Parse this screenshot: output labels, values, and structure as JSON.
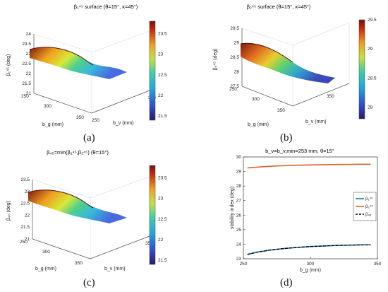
{
  "captions": [
    "(a)",
    "(b)",
    "(c)",
    "(d)"
  ],
  "chart_data": [
    {
      "type": "surface",
      "title": "β₁⁴⁵ surface (θ=15°, κ=45°)",
      "zlabel": "β₁⁴⁵ (deg)",
      "xlabel": "b_g (mm)",
      "ylabel": "b_v (mm)",
      "x_ticks": [
        "250",
        "300",
        "350"
      ],
      "y_ticks": [
        "250",
        "300",
        "350"
      ],
      "z_ticks": [
        "21",
        "21.5",
        "22",
        "22.5",
        "23",
        "23.5",
        "24"
      ],
      "zlim": [
        21,
        24
      ],
      "colorbar_ticks": [
        "21.5",
        "22",
        "22.5",
        "23",
        "23.5"
      ],
      "colorbar_range": [
        21.4,
        23.8
      ],
      "colormap": "jet"
    },
    {
      "type": "surface",
      "title": "β₂⁴⁵ surface (θ=15°, κ=45°)",
      "zlabel": "β₂⁴⁵ (deg)",
      "xlabel": "b_g (mm)",
      "ylabel": "b_v (mm)",
      "x_ticks": [
        "250",
        "300",
        "350"
      ],
      "y_ticks": [
        "250",
        "300",
        "350"
      ],
      "z_ticks": [
        "27.5",
        "28",
        "28.5",
        "29",
        "29.5"
      ],
      "zlim": [
        27.5,
        29.5
      ],
      "colorbar_ticks": [
        "28",
        "28.5",
        "29",
        "29.5"
      ],
      "colorbar_range": [
        27.8,
        29.5
      ],
      "colormap": "jet"
    },
    {
      "type": "surface",
      "title": "β₄₅=min(β₁⁴⁵,β₂⁴⁵) (θ=15°)",
      "zlabel": "β₄₅ (deg)",
      "xlabel": "b_g (mm)",
      "ylabel": "b_v (mm)",
      "x_ticks": [
        "250",
        "300",
        "350"
      ],
      "y_ticks": [
        "250",
        "300",
        "350"
      ],
      "z_ticks": [
        "21",
        "21.5",
        "22",
        "22.5",
        "23",
        "23.5"
      ],
      "zlim": [
        21,
        23.5
      ],
      "colorbar_ticks": [
        "21.5",
        "22",
        "22.5",
        "23",
        "23.5"
      ],
      "colorbar_range": [
        21.4,
        23.8
      ],
      "colormap": "jet"
    },
    {
      "type": "line",
      "title": "b_v=b_v,min=253 mm, θ=15°",
      "xlabel": "b_g (mm)",
      "ylabel": "stability index (deg)",
      "xlim": [
        250,
        350
      ],
      "ylim": [
        23,
        30
      ],
      "x_ticks": [
        "250",
        "300",
        "350"
      ],
      "y_ticks": [
        "23",
        "24",
        "25",
        "26",
        "27",
        "28",
        "29",
        "30"
      ],
      "grid": false,
      "legend_position": "right",
      "series": [
        {
          "name": "β₁⁴⁵",
          "color": "#1f6fb0",
          "dash": false,
          "x": [
            253,
            260,
            270,
            280,
            290,
            300,
            310,
            320,
            330,
            340,
            345
          ],
          "y": [
            23.3,
            23.45,
            23.6,
            23.7,
            23.78,
            23.84,
            23.88,
            23.92,
            23.94,
            23.96,
            23.96
          ]
        },
        {
          "name": "β₂⁴⁵",
          "color": "#e0622a",
          "dash": false,
          "x": [
            253,
            260,
            270,
            280,
            290,
            300,
            310,
            320,
            330,
            340,
            345
          ],
          "y": [
            29.25,
            29.3,
            29.36,
            29.4,
            29.43,
            29.45,
            29.47,
            29.48,
            29.49,
            29.5,
            29.5
          ]
        },
        {
          "name": "β₄₅",
          "color": "#000000",
          "dash": true,
          "x": [
            253,
            260,
            270,
            280,
            290,
            300,
            310,
            320,
            330,
            340,
            345
          ],
          "y": [
            23.3,
            23.45,
            23.6,
            23.7,
            23.78,
            23.84,
            23.88,
            23.92,
            23.94,
            23.96,
            23.96
          ]
        }
      ]
    }
  ]
}
